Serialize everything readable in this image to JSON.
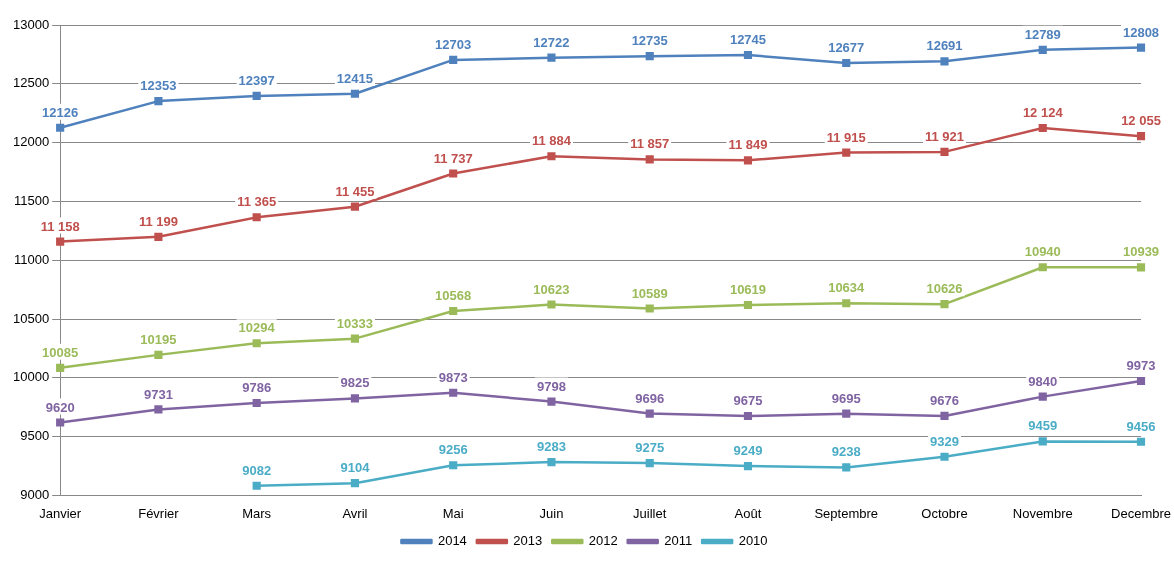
{
  "chart_data": {
    "type": "line",
    "categories": [
      "Janvier",
      "Février",
      "Mars",
      "Avril",
      "Mai",
      "Juin",
      "Juillet",
      "Août",
      "Septembre",
      "Octobre",
      "Novembre",
      "Decembre"
    ],
    "series": [
      {
        "name": "2014",
        "color": "#4f81bd",
        "values": [
          12126,
          12353,
          12397,
          12415,
          12703,
          12722,
          12735,
          12745,
          12677,
          12691,
          12789,
          12808
        ],
        "value_labels": [
          "12126",
          "12353",
          "12397",
          "12415",
          "12703",
          "12722",
          "12735",
          "12745",
          "12677",
          "12691",
          "12789",
          "12808"
        ]
      },
      {
        "name": "2013",
        "color": "#c0504d",
        "values": [
          11158,
          11199,
          11365,
          11455,
          11737,
          11884,
          11857,
          11849,
          11915,
          11921,
          12124,
          12055
        ],
        "value_labels": [
          "11 158",
          "11 199",
          "11 365",
          "11 455",
          "11 737",
          "11 884",
          "11 857",
          "11 849",
          "11 915",
          "11 921",
          "12 124",
          "12 055"
        ]
      },
      {
        "name": "2012",
        "color": "#9bbb59",
        "values": [
          10085,
          10195,
          10294,
          10333,
          10568,
          10623,
          10589,
          10619,
          10634,
          10626,
          10940,
          10939
        ],
        "value_labels": [
          "10085",
          "10195",
          "10294",
          "10333",
          "10568",
          "10623",
          "10589",
          "10619",
          "10634",
          "10626",
          "10940",
          "10939"
        ]
      },
      {
        "name": "2011",
        "color": "#8064a2",
        "values": [
          9620,
          9731,
          9786,
          9825,
          9873,
          9798,
          9696,
          9675,
          9695,
          9676,
          9840,
          9973
        ],
        "value_labels": [
          "9620",
          "9731",
          "9786",
          "9825",
          "9873",
          "9798",
          "9696",
          "9675",
          "9695",
          "9676",
          "9840",
          "9973"
        ]
      },
      {
        "name": "2010",
        "color": "#4bacc6",
        "values": [
          null,
          null,
          9082,
          9104,
          9256,
          9283,
          9275,
          9249,
          9238,
          9329,
          9459,
          9456
        ],
        "value_labels": [
          null,
          null,
          "9082",
          "9104",
          "9256",
          "9283",
          "9275",
          "9249",
          "9238",
          "9329",
          "9459",
          "9456"
        ]
      }
    ],
    "ylim": [
      9000,
      13000
    ],
    "yticks": [
      9000,
      9500,
      10000,
      10500,
      11000,
      11500,
      12000,
      12500,
      13000
    ],
    "grid": "y",
    "legend": "bottom",
    "marker": "square",
    "line_style": "solid"
  }
}
